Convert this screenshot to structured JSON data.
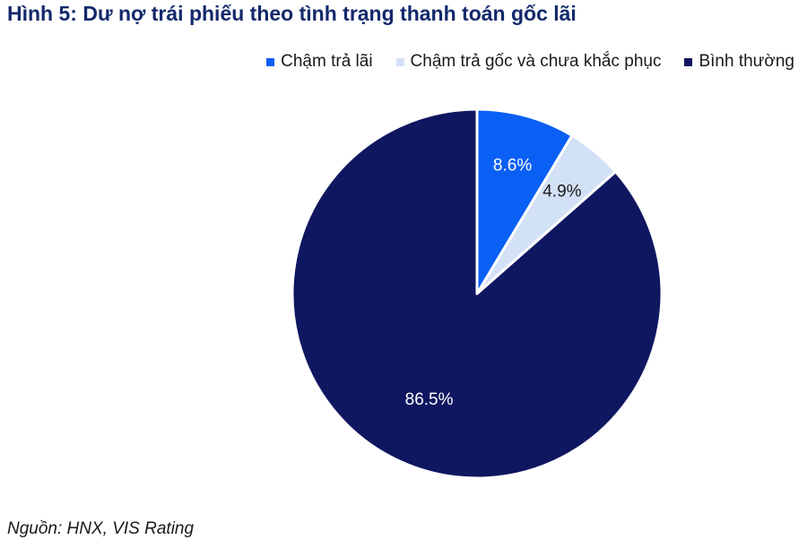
{
  "title": "Hình 5: Dư nợ trái phiếu theo tình trạng thanh toán gốc lãi",
  "source": "Nguồn: HNX, VIS Rating",
  "chart_data": {
    "type": "pie",
    "start_angle": "12 o'clock",
    "direction": "clockwise",
    "legend_position": "top-right",
    "slices": [
      {
        "label": "Chậm trả lãi",
        "value": 8.6,
        "value_label": "8.6%",
        "color": "#0a5ff5",
        "label_color": "#ffffff"
      },
      {
        "label": "Chậm trả gốc và chưa khắc phục",
        "value": 4.9,
        "value_label": "4.9%",
        "color": "#d3e1f7",
        "label_color": "#1a1a1a"
      },
      {
        "label": "Bình thường",
        "value": 86.5,
        "value_label": "86.5%",
        "color": "#0f1761",
        "label_color": "#ffffff"
      }
    ]
  }
}
